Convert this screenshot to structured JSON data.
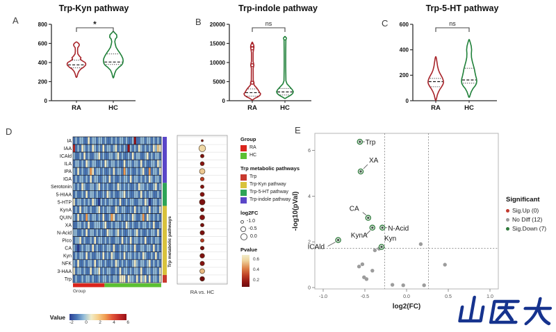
{
  "branding": {
    "logo_text": "山医大",
    "logo_color": "#16338e"
  },
  "chart_data": [
    {
      "type": "violin",
      "panel": "A",
      "title": "Trp-Kyn pathway",
      "significance": "*",
      "categories": [
        "RA",
        "HC"
      ],
      "ylim": [
        0,
        800
      ],
      "yticks": [
        0,
        200,
        400,
        600,
        800
      ],
      "series": [
        {
          "name": "RA",
          "color": "#a8242a",
          "median": 375,
          "q1": 345,
          "q3": 425,
          "beads": [],
          "profile": [
            [
              615,
              0.3
            ],
            [
              600,
              3.2
            ],
            [
              585,
              4.2
            ],
            [
              570,
              3.4
            ],
            [
              555,
              1.8
            ],
            [
              520,
              1.6
            ],
            [
              490,
              2.0
            ],
            [
              465,
              4.5
            ],
            [
              450,
              6.5
            ],
            [
              435,
              5.5
            ],
            [
              420,
              8.0
            ],
            [
              400,
              12.5
            ],
            [
              385,
              13.5
            ],
            [
              370,
              13.0
            ],
            [
              350,
              10.0
            ],
            [
              330,
              6.0
            ],
            [
              305,
              3.2
            ],
            [
              275,
              1.6
            ],
            [
              255,
              1.0
            ],
            [
              245,
              0.3
            ]
          ]
        },
        {
          "name": "HC",
          "color": "#1e8038",
          "median": 405,
          "q1": 380,
          "q3": 490,
          "beads": [],
          "profile": [
            [
              725,
              0.3
            ],
            [
              710,
              2.2
            ],
            [
              690,
              4.8
            ],
            [
              665,
              5.2
            ],
            [
              645,
              3.0
            ],
            [
              620,
              2.2
            ],
            [
              600,
              2.6
            ],
            [
              560,
              4.0
            ],
            [
              530,
              6.5
            ],
            [
              505,
              9.0
            ],
            [
              470,
              12.0
            ],
            [
              440,
              13.8
            ],
            [
              415,
              14.2
            ],
            [
              390,
              13.5
            ],
            [
              370,
              11.5
            ],
            [
              350,
              8.0
            ],
            [
              320,
              4.0
            ],
            [
              285,
              2.0
            ],
            [
              255,
              1.0
            ],
            [
              240,
              0.3
            ]
          ]
        }
      ]
    },
    {
      "type": "violin",
      "panel": "B",
      "title": "Trp-indole pathway",
      "significance": "ns",
      "categories": [
        "RA",
        "HC"
      ],
      "ylim": [
        0,
        20000
      ],
      "yticks": [
        0,
        5000,
        10000,
        15000,
        20000
      ],
      "series": [
        {
          "name": "RA",
          "color": "#a8242a",
          "median": 2100,
          "q1": 1200,
          "q3": 3100,
          "beads": [
            14500,
            13700,
            9300,
            4700
          ],
          "profile": [
            [
              15300,
              0.3
            ],
            [
              14800,
              1.4
            ],
            [
              14500,
              2.2
            ],
            [
              14000,
              2.4
            ],
            [
              13400,
              1.9
            ],
            [
              12600,
              1.2
            ],
            [
              10300,
              1.2
            ],
            [
              9300,
              2.3
            ],
            [
              8500,
              1.3
            ],
            [
              5300,
              1.4
            ],
            [
              4700,
              2.5
            ],
            [
              4200,
              2.4
            ],
            [
              3800,
              4.0
            ],
            [
              3300,
              6.5
            ],
            [
              2800,
              8.5
            ],
            [
              2300,
              10.0
            ],
            [
              1800,
              12.0
            ],
            [
              1400,
              11.0
            ],
            [
              1000,
              8.0
            ],
            [
              650,
              4.0
            ],
            [
              350,
              1.5
            ],
            [
              200,
              0.3
            ]
          ]
        },
        {
          "name": "HC",
          "color": "#1e8038",
          "median": 2300,
          "q1": 1500,
          "q3": 3200,
          "beads": [
            16300
          ],
          "profile": [
            [
              16800,
              0.3
            ],
            [
              16400,
              2.1
            ],
            [
              15900,
              1.3
            ],
            [
              12000,
              1.1
            ],
            [
              9000,
              1.1
            ],
            [
              5200,
              1.4
            ],
            [
              4400,
              3.0
            ],
            [
              3900,
              5.5
            ],
            [
              3400,
              8.0
            ],
            [
              2900,
              10.5
            ],
            [
              2400,
              12.0
            ],
            [
              2000,
              11.5
            ],
            [
              1600,
              9.5
            ],
            [
              1200,
              6.0
            ],
            [
              900,
              3.0
            ],
            [
              700,
              1.3
            ],
            [
              600,
              0.3
            ]
          ]
        }
      ]
    },
    {
      "type": "violin",
      "panel": "C",
      "title": "Trp-5-HT pathway",
      "significance": "ns",
      "categories": [
        "RA",
        "HC"
      ],
      "ylim": [
        0,
        600
      ],
      "yticks": [
        0,
        200,
        400,
        600
      ],
      "series": [
        {
          "name": "RA",
          "color": "#a8242a",
          "median": 150,
          "q1": 110,
          "q3": 175,
          "beads": [],
          "profile": [
            [
              345,
              0.3
            ],
            [
              330,
              1.0
            ],
            [
              300,
              1.8
            ],
            [
              270,
              2.6
            ],
            [
              240,
              4.0
            ],
            [
              220,
              5.5
            ],
            [
              200,
              7.5
            ],
            [
              180,
              9.5
            ],
            [
              160,
              10.8
            ],
            [
              145,
              11.2
            ],
            [
              130,
              10.5
            ],
            [
              110,
              8.5
            ],
            [
              90,
              6.0
            ],
            [
              70,
              4.0
            ],
            [
              45,
              2.2
            ],
            [
              15,
              1.0
            ],
            [
              5,
              0.3
            ]
          ]
        },
        {
          "name": "HC",
          "color": "#1e8038",
          "median": 163,
          "q1": 138,
          "q3": 255,
          "beads": [],
          "profile": [
            [
              480,
              0.3
            ],
            [
              460,
              1.5
            ],
            [
              430,
              3.0
            ],
            [
              400,
              3.6
            ],
            [
              370,
              3.2
            ],
            [
              340,
              3.4
            ],
            [
              310,
              4.5
            ],
            [
              280,
              6.0
            ],
            [
              250,
              7.5
            ],
            [
              220,
              8.5
            ],
            [
              195,
              9.5
            ],
            [
              175,
              10.5
            ],
            [
              155,
              11.0
            ],
            [
              135,
              10.5
            ],
            [
              115,
              8.5
            ],
            [
              95,
              5.5
            ],
            [
              70,
              3.0
            ],
            [
              45,
              1.5
            ],
            [
              28,
              0.5
            ]
          ]
        }
      ]
    },
    {
      "type": "heatmap",
      "panel": "D",
      "rows": [
        {
          "label": "IA",
          "log2fc": -1.15,
          "pvalue": 0.12
        },
        {
          "label": "IAA",
          "log2fc": -0.05,
          "pvalue": 0.62
        },
        {
          "label": "ICAld",
          "log2fc": -0.8,
          "pvalue": 0.08
        },
        {
          "label": "ILA",
          "log2fc": -0.7,
          "pvalue": 0.12
        },
        {
          "label": "IPA",
          "log2fc": -0.35,
          "pvalue": 0.58
        },
        {
          "label": "IGA",
          "log2fc": -0.75,
          "pvalue": 0.3
        },
        {
          "label": "Serotonin",
          "log2fc": -0.8,
          "pvalue": 0.1
        },
        {
          "label": "5-HIAA",
          "log2fc": -0.65,
          "pvalue": 0.1
        },
        {
          "label": "5-HTP",
          "log2fc": -0.3,
          "pvalue": 0.06
        },
        {
          "label": "KynA",
          "log2fc": -0.75,
          "pvalue": 0.06
        },
        {
          "label": "QUIN",
          "log2fc": -0.5,
          "pvalue": 0.1
        },
        {
          "label": "XA",
          "log2fc": -0.8,
          "pvalue": 0.05
        },
        {
          "label": "N-Acid",
          "log2fc": -0.6,
          "pvalue": 0.06
        },
        {
          "label": "Pico",
          "log2fc": -0.8,
          "pvalue": 0.28
        },
        {
          "label": "CA",
          "log2fc": -0.75,
          "pvalue": 0.05
        },
        {
          "label": "Kyn",
          "log2fc": -0.55,
          "pvalue": 0.08
        },
        {
          "label": "NFK",
          "log2fc": -0.6,
          "pvalue": 0.1
        },
        {
          "label": "3-HAA",
          "log2fc": -0.5,
          "pvalue": 0.55
        },
        {
          "label": "Trp",
          "log2fc": -0.55,
          "pvalue": 0.02
        }
      ],
      "matrix": [
        "121221131221221211212122121128112212212121",
        "712132121321213122123121218212132121213243",
        "211213121122312112212312112131221123121221",
        "122121321221121321221211312212213121122132",
        "213121125312212112131221521211212311512213",
        "121221213122112213121121221312212121321221",
        "212132112212312121121321212112132212112312",
        "121121312212112132121122312112213121221121",
        "312212121321021212212131121221122132012212",
        "121312212112312122113212211213121221312213",
        "213121521221213112531221212132112513212121",
        "112212131122212311212212132121121221213112",
        "221121312212121132212312112212312112122131",
        "122312112131221212112213121312212131121221",
        "210121221312112122131121221213112212213121",
        "121221312112213121321121312212121321121312",
        "213112122131221211213212121123212212312121",
        "312212113122312122112131221212213112212213",
        "121121221211212212122133313221313231312213"
      ],
      "n_cols": 42,
      "n_ra_cols": 15,
      "group_label": "Group",
      "group_legend": {
        "title": "Group",
        "items": [
          {
            "label": "RA",
            "color": "#da251d"
          },
          {
            "label": "HC",
            "color": "#5cc033"
          }
        ]
      },
      "pathway_legend": {
        "title": "Trp metabolic pathways",
        "items": [
          {
            "label": "Trp",
            "color": "#c8392e",
            "rows": 1
          },
          {
            "label": "Trp-Kyn pathway",
            "color": "#d8c23c",
            "rows": 9
          },
          {
            "label": "Trp-5-HT pathway",
            "color": "#2fa457",
            "rows": 3
          },
          {
            "label": "Trp-indole pathway",
            "color": "#5a46c8",
            "rows": 6
          }
        ]
      },
      "bar_order": [
        "Trp-indole pathway",
        "Trp-5-HT pathway",
        "Trp-Kyn pathway",
        "Trp"
      ],
      "side_label": "Trp metabolic pathways",
      "dot_xlabel": "RA vs. HC",
      "log2fc_legend": {
        "title": "log2FC",
        "values": [
          -1.0,
          -0.5,
          0.0
        ]
      },
      "pvalue_legend": {
        "title": "Pvalue",
        "ticks": [
          0.6,
          0.4,
          0.2
        ]
      },
      "value_legend": {
        "label": "Value",
        "ticks": [
          -2,
          0,
          2,
          4,
          6
        ]
      }
    },
    {
      "type": "scatter",
      "panel": "E",
      "xlabel": "log2(FC)",
      "ylabel": "-log10(pVal)",
      "xticks": [
        -1.0,
        -0.5,
        0.0,
        0.5,
        1.0
      ],
      "yticks": [
        0,
        2,
        4,
        6
      ],
      "xlim": [
        -1.1,
        1.1
      ],
      "ylim": [
        -0.1,
        6.8
      ],
      "thresholds": {
        "x": [
          -0.263,
          0.263
        ],
        "y": 1.72
      },
      "legend": {
        "title": "Significant",
        "items": [
          {
            "label": "Sig.Up (0)",
            "color": "#c23a2e"
          },
          {
            "label": "No Diff (12)",
            "color": "#9c9c9c"
          },
          {
            "label": "Sig.Down (7)",
            "color": "#2f7a3c"
          }
        ]
      },
      "sig_down": [
        {
          "name": "Trp",
          "x": -0.56,
          "y": 6.38
        },
        {
          "name": "XA",
          "x": -0.55,
          "y": 5.08
        },
        {
          "name": "CA",
          "x": -0.46,
          "y": 3.05
        },
        {
          "name": "KynA",
          "x": -0.41,
          "y": 2.62
        },
        {
          "name": "N-Acid",
          "x": -0.29,
          "y": 2.62
        },
        {
          "name": "ICAld",
          "x": -0.82,
          "y": 2.08
        },
        {
          "name": "Kyn",
          "x": -0.3,
          "y": 1.78
        }
      ],
      "no_diff": [
        [
          -0.33,
          1.7
        ],
        [
          -0.38,
          1.63
        ],
        [
          0.17,
          1.9
        ],
        [
          -0.53,
          1.02
        ],
        [
          -0.57,
          0.92
        ],
        [
          -0.41,
          0.74
        ],
        [
          -0.51,
          0.45
        ],
        [
          -0.48,
          0.37
        ],
        [
          -0.17,
          0.12
        ],
        [
          -0.04,
          0.1
        ],
        [
          0.21,
          0.1
        ],
        [
          0.46,
          1.0
        ]
      ]
    }
  ]
}
